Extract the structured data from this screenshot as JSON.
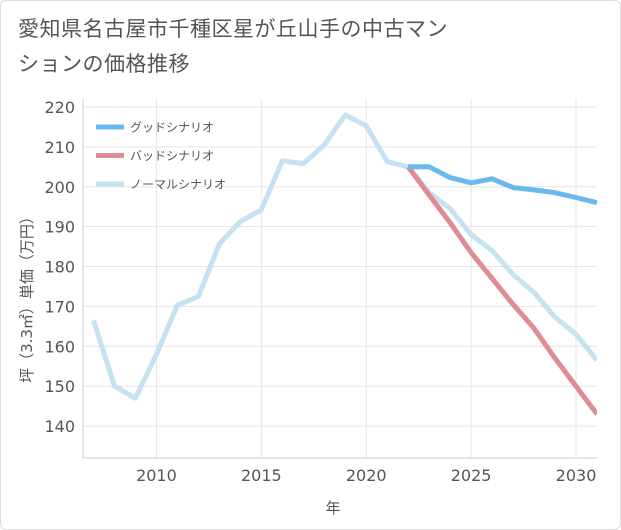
{
  "title": "愛知県名古屋市千種区星が丘山手の中古マンションの価格推移",
  "chart_data": {
    "type": "line",
    "xlabel": "年",
    "ylabel": "坪（3.3㎡）単価（万円）",
    "xlim": [
      2006.5,
      2031
    ],
    "ylim": [
      132,
      222
    ],
    "xticks": [
      2010,
      2015,
      2020,
      2025,
      2030
    ],
    "yticks": [
      140,
      150,
      160,
      170,
      180,
      190,
      200,
      210,
      220
    ],
    "grid": true,
    "legend_position": "top-left",
    "series": [
      {
        "name": "グッドシナリオ",
        "color": "#6bb8ee",
        "x": [
          2022,
          2023,
          2024,
          2025,
          2026,
          2027,
          2028,
          2029,
          2030,
          2031
        ],
        "values": [
          205,
          205,
          202.3,
          201,
          202,
          199.8,
          199.2,
          198.5,
          197.3,
          196
        ]
      },
      {
        "name": "バッドシナリオ",
        "color": "#e08c95",
        "x": [
          2022,
          2023,
          2024,
          2025,
          2026,
          2027,
          2028,
          2029,
          2030,
          2031
        ],
        "values": [
          205,
          197.9,
          191,
          183.5,
          177,
          170.5,
          164.5,
          157,
          150,
          143
        ]
      },
      {
        "name": "ノーマルシナリオ",
        "color": "#c5e2f2",
        "x": [
          2007,
          2008,
          2009,
          2010,
          2011,
          2012,
          2013,
          2014,
          2015,
          2016,
          2017,
          2018,
          2019,
          2020,
          2021,
          2022,
          2023,
          2024,
          2025,
          2026,
          2027,
          2028,
          2029,
          2030,
          2031
        ],
        "values": [
          166.5,
          150,
          147,
          158,
          170.3,
          172.5,
          185.7,
          191.3,
          194.2,
          206.5,
          205.8,
          210.5,
          218,
          215.3,
          206.3,
          205,
          198.5,
          194.5,
          188,
          184,
          178,
          173.5,
          167.3,
          163,
          156.5
        ]
      }
    ]
  }
}
